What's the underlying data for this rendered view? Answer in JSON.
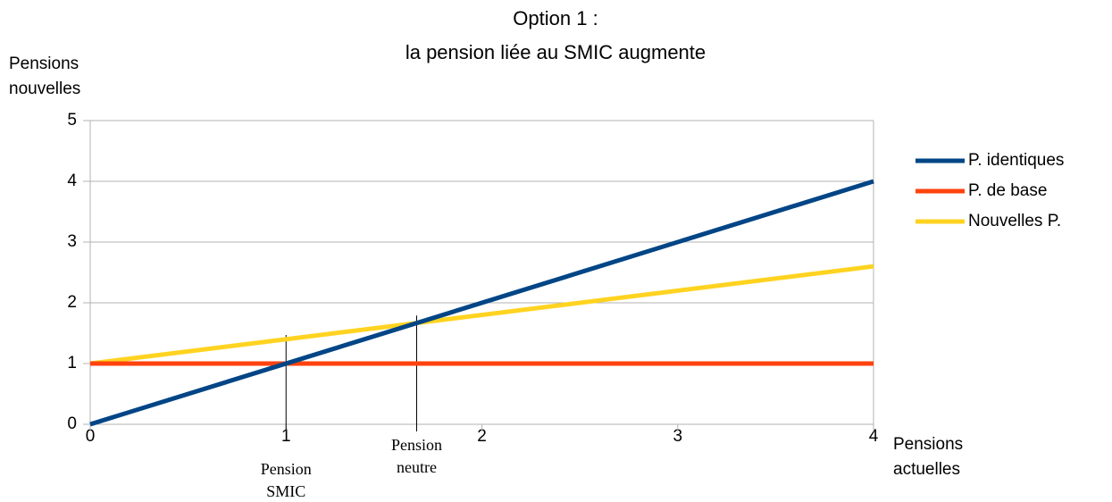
{
  "chart_data": {
    "type": "line",
    "title": [
      "Option 1 :",
      "la pension liée au SMIC augmente"
    ],
    "y_label": [
      "Pensions",
      "nouvelles"
    ],
    "x_label": [
      "Pensions",
      "actuelles"
    ],
    "x": [
      0,
      4
    ],
    "series": [
      {
        "name": "P. identiques",
        "color": "#004586",
        "values": [
          0,
          4
        ]
      },
      {
        "name": "P. de base",
        "color": "#ff420e",
        "values": [
          1,
          1
        ]
      },
      {
        "name": "Nouvelles P.",
        "color": "#ffd320",
        "values": [
          1,
          2.6
        ]
      }
    ],
    "xlim": [
      0,
      4
    ],
    "xticks": [
      0,
      1,
      2,
      3,
      4
    ],
    "ylim": [
      0,
      5
    ],
    "yticks": [
      0,
      1,
      2,
      3,
      4,
      5
    ],
    "grid": true,
    "legend": "right",
    "annotations": [
      {
        "lines": [
          "Pension",
          "SMIC"
        ],
        "x": 1,
        "y": 1.47
      },
      {
        "lines": [
          "Pension",
          "neutre"
        ],
        "x": 1.667,
        "y": 1.79
      }
    ]
  }
}
